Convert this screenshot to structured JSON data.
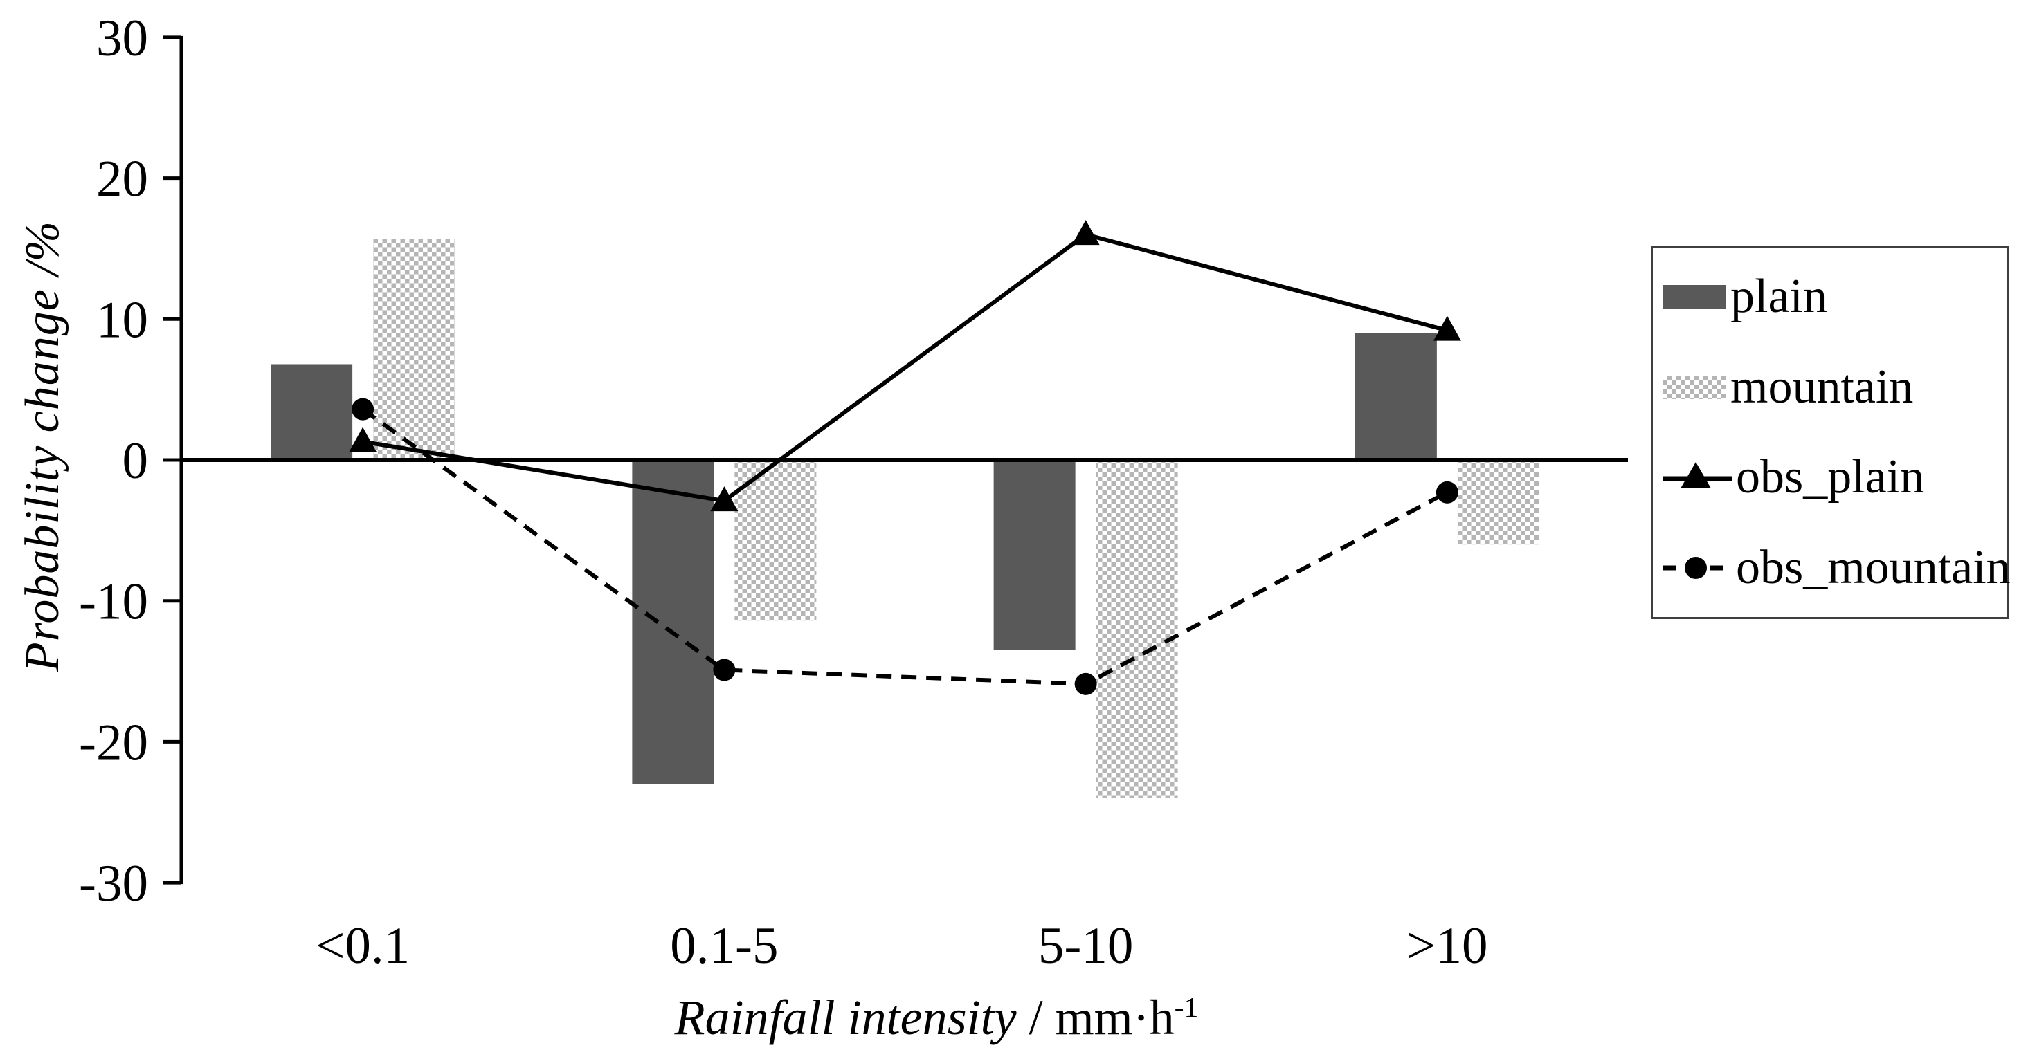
{
  "figure_title": "",
  "yaxis_title": "Probability change /%",
  "xaxis_title": {
    "italic": "Rainfall intensity",
    "unit": " / mm·h",
    "exponent": "-1"
  },
  "chart_data": {
    "type": "bar+line",
    "categories": [
      "<0.1",
      "0.1-5",
      "5-10",
      ">10"
    ],
    "series": [
      {
        "name": "plain",
        "type": "bar",
        "style": "solid-gray",
        "values": [
          6.8,
          -23.0,
          -13.5,
          9.0
        ]
      },
      {
        "name": "mountain",
        "type": "bar",
        "style": "checker",
        "values": [
          15.7,
          -11.4,
          -24.0,
          -6.0
        ]
      },
      {
        "name": "obs_plain",
        "type": "line",
        "style": "solid-triangle",
        "values": [
          1.3,
          -2.9,
          16.0,
          9.2
        ]
      },
      {
        "name": "obs_mountain",
        "type": "line",
        "style": "dashed-circle",
        "values": [
          3.6,
          -14.9,
          -15.9,
          -2.3
        ]
      }
    ],
    "ylabel": "Probability change /%",
    "xlabel": "Rainfall intensity / mm·h-1",
    "ylim": [
      -30,
      30
    ],
    "yticks": [
      30,
      20,
      10,
      0,
      -10,
      -20,
      -30
    ],
    "grid": false,
    "legend_position": "right",
    "colors": {
      "plain_bar": "#595959",
      "checker_gray": "#b5b5b5",
      "line": "#000000",
      "axis": "#000000"
    }
  }
}
